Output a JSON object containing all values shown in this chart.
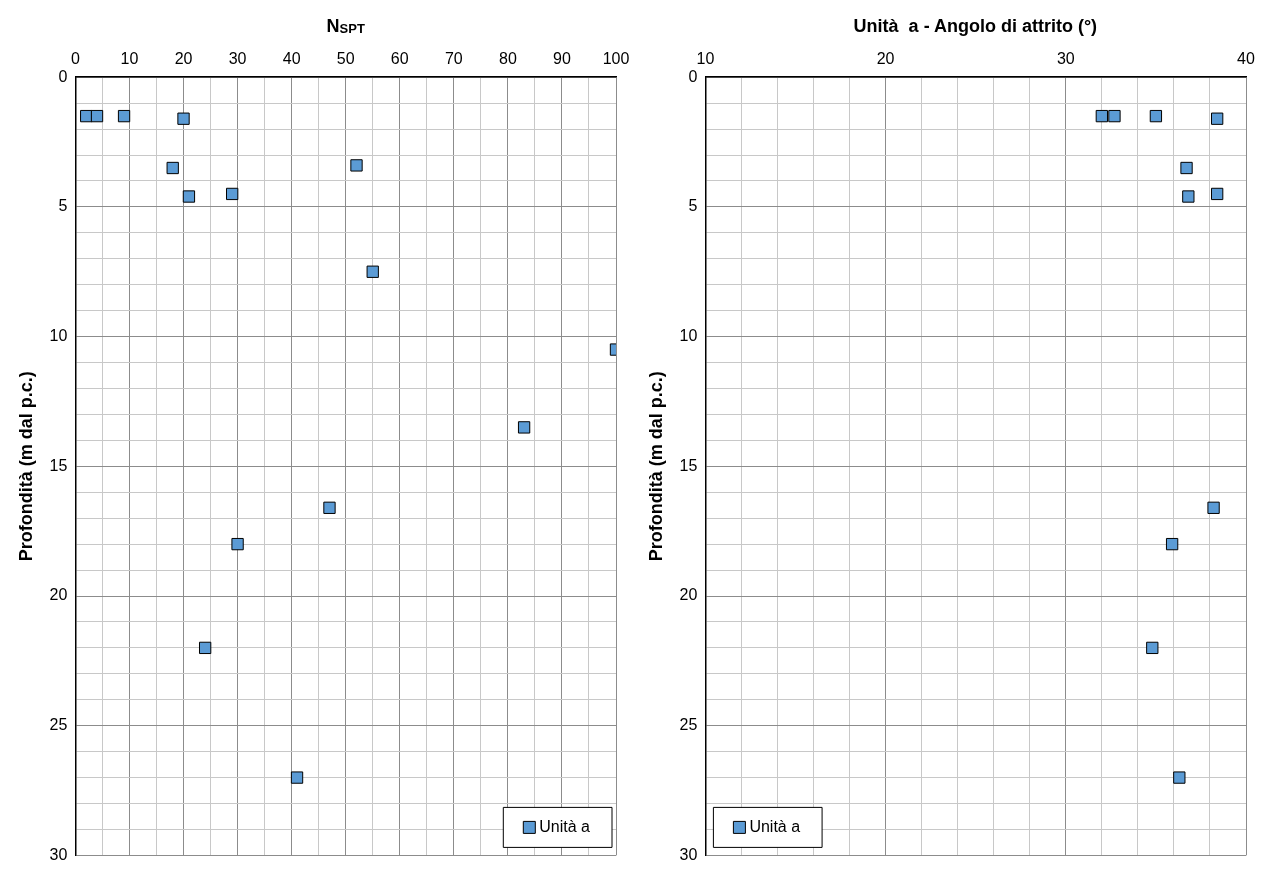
{
  "chart_data": [
    {
      "type": "scatter",
      "xlabel": "N$_{SPT}$",
      "ylabel": "Profondità (m dal p.c.)",
      "xlim": [
        0,
        100
      ],
      "xticks": [
        0,
        {
          "value": 5,
          "label": null
        },
        10,
        {
          "value": 15,
          "label": null
        },
        20,
        {
          "value": 25,
          "label": null
        },
        30,
        {
          "value": 35,
          "label": null
        },
        40,
        {
          "value": 45,
          "label": null
        },
        50,
        {
          "value": 55,
          "label": null
        },
        60,
        {
          "value": 65,
          "label": null
        },
        70,
        {
          "value": 75,
          "label": null
        },
        80,
        {
          "value": 85,
          "label": null
        },
        90,
        {
          "value": 95,
          "label": null
        },
        100
      ],
      "ylim": [
        30,
        0
      ],
      "yticks": [
        0,
        {
          "value": 1,
          "label": null
        },
        {
          "value": 2,
          "label": null
        },
        {
          "value": 3,
          "label": null
        },
        {
          "value": 4,
          "label": null
        },
        5,
        {
          "value": 6,
          "label": null
        },
        {
          "value": 7,
          "label": null
        },
        {
          "value": 8,
          "label": null
        },
        {
          "value": 9,
          "label": null
        },
        10,
        {
          "value": 11,
          "label": null
        },
        {
          "value": 12,
          "label": null
        },
        {
          "value": 13,
          "label": null
        },
        {
          "value": 14,
          "label": null
        },
        15,
        {
          "value": 16,
          "label": null
        },
        {
          "value": 17,
          "label": null
        },
        {
          "value": 18,
          "label": null
        },
        {
          "value": 19,
          "label": null
        },
        20,
        {
          "value": 21,
          "label": null
        },
        {
          "value": 22,
          "label": null
        },
        {
          "value": 23,
          "label": null
        },
        {
          "value": 24,
          "label": null
        },
        25,
        {
          "value": 26,
          "label": null
        },
        {
          "value": 27,
          "label": null
        },
        {
          "value": 28,
          "label": null
        },
        {
          "value": 29,
          "label": null
        },
        30
      ],
      "grid": true,
      "legend": "bottom right",
      "marker": "square",
      "series": [
        {
          "name": "Unità a",
          "color": "#5b9bd5",
          "x": [
            2,
            4,
            9,
            20,
            18,
            52,
            21,
            29,
            55,
            100,
            83,
            47,
            30,
            24,
            41
          ],
          "values": [
            1.5,
            1.5,
            1.5,
            1.6,
            3.5,
            3.4,
            4.6,
            4.5,
            7.5,
            10.5,
            13.5,
            16.6,
            18,
            22,
            27
          ]
        }
      ]
    },
    {
      "type": "scatter",
      "xlabel": "Unità  a - Angolo di attrito (°)",
      "ylabel": "Profondità (m dal p.c.)",
      "xlim": [
        10,
        40
      ],
      "xticks": [
        10,
        {
          "value": 12,
          "label": null
        },
        {
          "value": 14,
          "label": null
        },
        {
          "value": 16,
          "label": null
        },
        {
          "value": 18,
          "label": null
        },
        20,
        {
          "value": 22,
          "label": null
        },
        {
          "value": 24,
          "label": null
        },
        {
          "value": 26,
          "label": null
        },
        {
          "value": 28,
          "label": null
        },
        30,
        {
          "value": 32,
          "label": null
        },
        {
          "value": 34,
          "label": null
        },
        {
          "value": 36,
          "label": null
        },
        {
          "value": 38,
          "label": null
        },
        40
      ],
      "ylim": [
        30,
        0
      ],
      "yticks": [
        0,
        {
          "value": 1,
          "label": null
        },
        {
          "value": 2,
          "label": null
        },
        {
          "value": 3,
          "label": null
        },
        {
          "value": 4,
          "label": null
        },
        5,
        {
          "value": 6,
          "label": null
        },
        {
          "value": 7,
          "label": null
        },
        {
          "value": 8,
          "label": null
        },
        {
          "value": 9,
          "label": null
        },
        10,
        {
          "value": 11,
          "label": null
        },
        {
          "value": 12,
          "label": null
        },
        {
          "value": 13,
          "label": null
        },
        {
          "value": 14,
          "label": null
        },
        15,
        {
          "value": 16,
          "label": null
        },
        {
          "value": 17,
          "label": null
        },
        {
          "value": 18,
          "label": null
        },
        {
          "value": 19,
          "label": null
        },
        20,
        {
          "value": 21,
          "label": null
        },
        {
          "value": 22,
          "label": null
        },
        {
          "value": 23,
          "label": null
        },
        {
          "value": 24,
          "label": null
        },
        25,
        {
          "value": 26,
          "label": null
        },
        {
          "value": 27,
          "label": null
        },
        {
          "value": 28,
          "label": null
        },
        {
          "value": 29,
          "label": null
        },
        30
      ],
      "grid": true,
      "legend": "bottom left",
      "marker": "square",
      "series": [
        {
          "name": "Unità a",
          "color": "#5b9bd5",
          "x": [
            32,
            32.7,
            35,
            38.4,
            36.7,
            36.8,
            38.4,
            38.2,
            35.9,
            34.8,
            36.3
          ],
          "values": [
            1.5,
            1.5,
            1.5,
            1.6,
            3.5,
            4.6,
            4.5,
            16.6,
            18,
            22,
            27
          ]
        }
      ]
    }
  ]
}
